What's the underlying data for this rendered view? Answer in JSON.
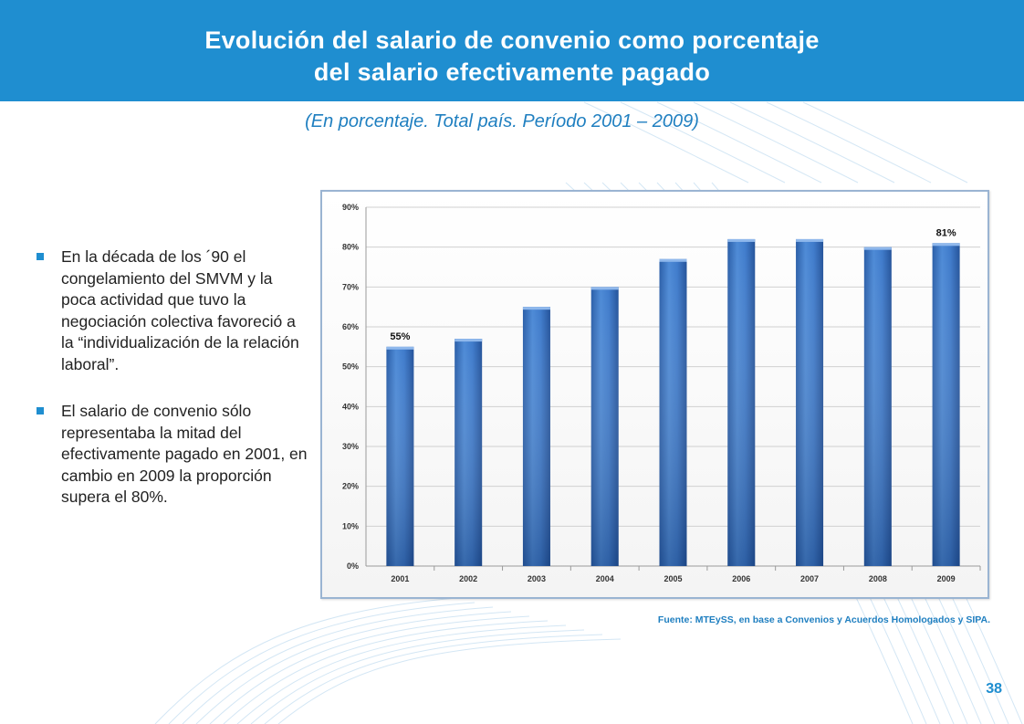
{
  "slide": {
    "title_line1": "Evolución del salario de convenio como porcentaje",
    "title_line2": "del salario efectivamente pagado",
    "subtitle": "(En porcentaje. Total país. Período 2001 – 2009)",
    "source": "Fuente: MTEySS, en base a Convenios y Acuerdos Homologados y SIPA.",
    "page_number": "38",
    "colors": {
      "header": "#1f8ed0",
      "bar": "#3a78c8",
      "accent_text": "#1f7fc0"
    }
  },
  "bullets": [
    {
      "text": "En la década de los ´90 el congelamiento del SMVM y la poca actividad que tuvo la negociación colectiva favoreció a la “individualización de la relación laboral”."
    },
    {
      "text": "El salario de convenio sólo representaba la mitad del efectivamente pagado en 2001, en cambio en 2009 la proporción supera el 80%."
    }
  ],
  "chart_data": {
    "type": "bar",
    "categories": [
      "2001",
      "2002",
      "2003",
      "2004",
      "2005",
      "2006",
      "2007",
      "2008",
      "2009"
    ],
    "values": [
      55,
      57,
      65,
      70,
      77,
      82,
      82,
      80,
      81
    ],
    "data_labels": [
      {
        "index": 0,
        "text": "55%"
      },
      {
        "index": 8,
        "text": "81%"
      }
    ],
    "y_ticks": [
      "0%",
      "10%",
      "20%",
      "30%",
      "40%",
      "50%",
      "60%",
      "70%",
      "80%",
      "90%"
    ],
    "ylim": [
      0,
      90
    ],
    "grid": true,
    "title": "",
    "xlabel": "",
    "ylabel": ""
  }
}
